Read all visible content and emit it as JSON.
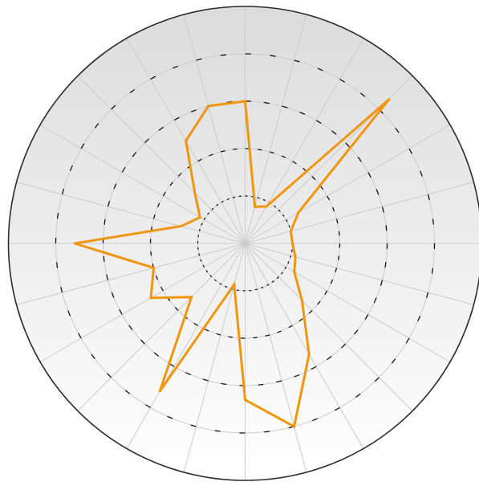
{
  "chart_data": {
    "type": "radar",
    "title": "",
    "axes_count": 24,
    "start_angle_deg": 90,
    "direction": "clockwise",
    "rlim": [
      0,
      5
    ],
    "ring_values": [
      1,
      2,
      3,
      4
    ],
    "grid": true,
    "tick_labels_visible": false,
    "series": [
      {
        "color": "#f0960e",
        "values": [
          3.0,
          0.8,
          0.9,
          4.3,
          1.3,
          1.0,
          1.0,
          1.1,
          1.2,
          1.7,
          2.7,
          4.0,
          3.3,
          0.9,
          3.6,
          1.6,
          2.3,
          2.0,
          3.6,
          1.4,
          1.1,
          1.5,
          2.5,
          3.0
        ]
      }
    ],
    "colors": {
      "face_top": "#dcdcdc",
      "face_bottom": "#ffffff",
      "outline": "#2b2b2b",
      "spoke": "#cbcbcb",
      "ring_dash": "#111111"
    }
  }
}
